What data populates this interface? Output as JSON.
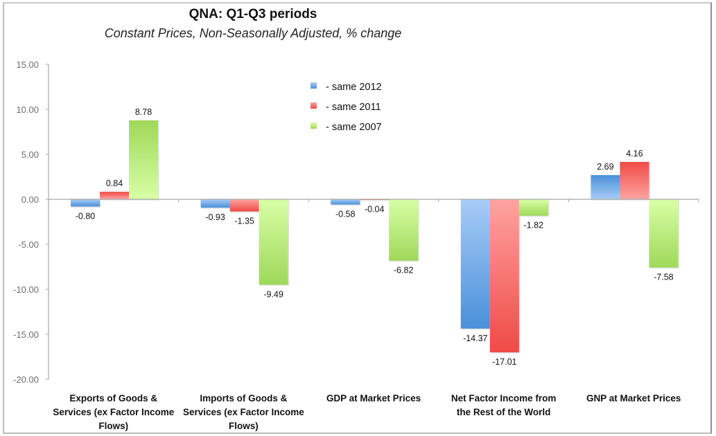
{
  "chart_data": {
    "type": "bar",
    "title": "QNA: Q1-Q3 periods",
    "subtitle": "Constant Prices, Non-Seasonally Adjusted, % change",
    "xlabel": "",
    "ylabel": "",
    "ylim": [
      -20,
      15
    ],
    "yticks": [
      15,
      10,
      5,
      0,
      -5,
      -10,
      -15,
      -20
    ],
    "ytick_labels": [
      "15.00",
      "10.00",
      "5.00",
      "0.00",
      "-5.00",
      "-10.00",
      "-15.00",
      "-20.00"
    ],
    "grid": false,
    "legend_position": "top-center",
    "categories": [
      [
        "Exports of Goods &",
        "Services (ex Factor Income",
        "Flows)"
      ],
      [
        "Imports of Goods &",
        "Services (ex Factor Income",
        "Flows)"
      ],
      [
        "GDP at Market Prices"
      ],
      [
        "Net Factor Income from",
        "the Rest of the World"
      ],
      [
        "GNP at Market Prices"
      ]
    ],
    "series": [
      {
        "name": "- same 2012",
        "color": "#4a90d9",
        "light": "#a8ccf7",
        "values": [
          -0.8,
          -0.93,
          -0.58,
          -14.37,
          2.69
        ],
        "labels": [
          "-0.80",
          "-0.93",
          "-0.58",
          "-14.37",
          "2.69"
        ]
      },
      {
        "name": "- same 2011",
        "color": "#ef4a45",
        "light": "#ffa3a0",
        "values": [
          0.84,
          -1.35,
          -0.04,
          -17.01,
          4.16
        ],
        "labels": [
          "0.84",
          "-1.35",
          "-0.04",
          "-17.01",
          "4.16"
        ]
      },
      {
        "name": "- same 2007",
        "color": "#9fd85a",
        "light": "#d8ffa6",
        "values": [
          8.78,
          -9.49,
          -6.82,
          -1.82,
          -7.58
        ],
        "labels": [
          "8.78",
          "-9.49",
          "-6.82",
          "-1.82",
          "-7.58"
        ]
      }
    ]
  }
}
